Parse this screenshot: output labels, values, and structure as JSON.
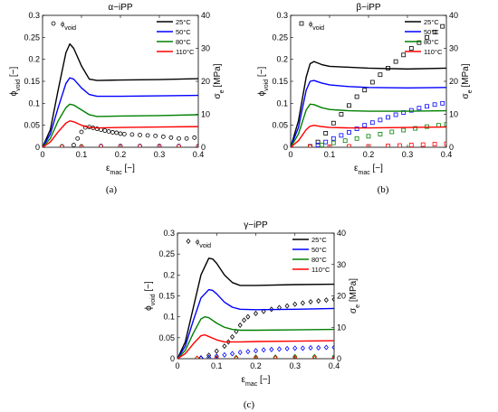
{
  "chart_data": [
    {
      "id": "a",
      "type": "line",
      "title": "α−iPP",
      "caption": "(a)",
      "xlabel": "ε",
      "xlabel_sub": "mac",
      "xlabel_unit": "[−]",
      "ylabel_left": "ϕ",
      "ylabel_left_sub": "void",
      "ylabel_left_unit": "[−]",
      "ylabel_right": "σ",
      "ylabel_right_sub": "e",
      "ylabel_right_unit": "[MPa]",
      "xlim": [
        0,
        0.4
      ],
      "ylim_left": [
        0,
        0.3
      ],
      "ylim_right": [
        0,
        40
      ],
      "x_ticks": [
        "0",
        "0.1",
        "0.2",
        "0.3",
        "0.4"
      ],
      "y_left_ticks": [
        "0",
        "0.05",
        "0.1",
        "0.15",
        "0.2",
        "0.25",
        "0.3"
      ],
      "y_right_ticks": [
        "0",
        "10",
        "20",
        "30",
        "40"
      ],
      "marker_legend": {
        "symbol": "circle",
        "label": "ϕ",
        "label_sub": "void"
      },
      "legend_position": "top-right",
      "series": [
        {
          "name": "25°C",
          "color": "#000000",
          "x": [
            0,
            0.02,
            0.04,
            0.06,
            0.07,
            0.08,
            0.1,
            0.12,
            0.14,
            0.2,
            0.3,
            0.4
          ],
          "y": [
            0,
            0.04,
            0.13,
            0.215,
            0.235,
            0.225,
            0.185,
            0.155,
            0.152,
            0.153,
            0.154,
            0.156
          ]
        },
        {
          "name": "50°C",
          "color": "#0000ff",
          "x": [
            0,
            0.02,
            0.04,
            0.06,
            0.07,
            0.08,
            0.1,
            0.12,
            0.14,
            0.2,
            0.3,
            0.4
          ],
          "y": [
            0,
            0.03,
            0.09,
            0.145,
            0.158,
            0.155,
            0.135,
            0.12,
            0.116,
            0.116,
            0.117,
            0.118
          ]
        },
        {
          "name": "80°C",
          "color": "#008000",
          "x": [
            0,
            0.02,
            0.04,
            0.06,
            0.07,
            0.08,
            0.1,
            0.12,
            0.14,
            0.2,
            0.3,
            0.4
          ],
          "y": [
            0,
            0.02,
            0.06,
            0.09,
            0.098,
            0.096,
            0.085,
            0.074,
            0.07,
            0.071,
            0.072,
            0.074
          ]
        },
        {
          "name": "110°C",
          "color": "#ff0000",
          "x": [
            0,
            0.02,
            0.04,
            0.06,
            0.07,
            0.08,
            0.1,
            0.12,
            0.14,
            0.2,
            0.3,
            0.4
          ],
          "y": [
            0,
            0.012,
            0.035,
            0.055,
            0.06,
            0.058,
            0.05,
            0.045,
            0.044,
            0.045,
            0.046,
            0.047
          ]
        }
      ],
      "markers": [
        {
          "name": "25°C",
          "color": "#000000",
          "x": [
            0,
            0.05,
            0.08,
            0.09,
            0.1,
            0.11,
            0.12,
            0.13,
            0.14,
            0.15,
            0.16,
            0.17,
            0.18,
            0.19,
            0.2,
            0.21,
            0.23,
            0.25,
            0.27,
            0.29,
            0.31,
            0.33,
            0.35,
            0.37,
            0.39
          ],
          "y": [
            0,
            0.002,
            0.005,
            0.02,
            0.035,
            0.045,
            0.046,
            0.044,
            0.042,
            0.04,
            0.038,
            0.036,
            0.034,
            0.033,
            0.031,
            0.03,
            0.029,
            0.028,
            0.027,
            0.026,
            0.024,
            0.022,
            0.02,
            0.02,
            0.022
          ]
        },
        {
          "name": "50°C",
          "color": "#0000ff",
          "x": [
            0,
            0.05,
            0.1,
            0.15,
            0.2,
            0.25,
            0.3,
            0.35,
            0.4
          ],
          "y": [
            0.002,
            0.002,
            0.002,
            0.003,
            0.003,
            0.003,
            0.003,
            0.003,
            0.003
          ]
        },
        {
          "name": "80°C",
          "color": "#008000",
          "x": [
            0,
            0.05,
            0.1,
            0.15,
            0.2,
            0.25,
            0.3,
            0.35,
            0.4
          ],
          "y": [
            0.002,
            0.002,
            0.002,
            0.002,
            0.002,
            0.002,
            0.002,
            0.002,
            0.002
          ]
        },
        {
          "name": "110°C",
          "color": "#ff0000",
          "x": [
            0,
            0.05,
            0.1,
            0.15,
            0.2,
            0.25,
            0.3,
            0.35,
            0.4
          ],
          "y": [
            0.001,
            0.001,
            0.001,
            0.002,
            0.002,
            0.002,
            0.002,
            0.002,
            0.002
          ]
        }
      ]
    },
    {
      "id": "b",
      "type": "line",
      "title": "β−iPP",
      "caption": "(b)",
      "xlabel": "ε",
      "xlabel_sub": "mac",
      "xlabel_unit": "[−]",
      "ylabel_left": "ϕ",
      "ylabel_left_sub": "void",
      "ylabel_left_unit": "[−]",
      "ylabel_right": "σ",
      "ylabel_right_sub": "e",
      "ylabel_right_unit": "[MPa]",
      "xlim": [
        0,
        0.4
      ],
      "ylim_left": [
        0,
        0.3
      ],
      "ylim_right": [
        0,
        40
      ],
      "x_ticks": [
        "0",
        "0.1",
        "0.2",
        "0.3",
        "0.4"
      ],
      "y_left_ticks": [
        "0",
        "0.05",
        "0.1",
        "0.15",
        "0.2",
        "0.25",
        "0.3"
      ],
      "y_right_ticks": [
        "0",
        "10",
        "20",
        "30",
        "40"
      ],
      "marker_legend": {
        "symbol": "square",
        "label": "ϕ",
        "label_sub": "void"
      },
      "legend_position": "top-right",
      "series": [
        {
          "name": "25°C",
          "color": "#000000",
          "x": [
            0,
            0.02,
            0.04,
            0.05,
            0.06,
            0.08,
            0.1,
            0.15,
            0.2,
            0.3,
            0.4
          ],
          "y": [
            0,
            0.06,
            0.16,
            0.19,
            0.195,
            0.188,
            0.184,
            0.182,
            0.18,
            0.178,
            0.18
          ]
        },
        {
          "name": "50°C",
          "color": "#0000ff",
          "x": [
            0,
            0.02,
            0.04,
            0.05,
            0.06,
            0.08,
            0.1,
            0.15,
            0.2,
            0.3,
            0.4
          ],
          "y": [
            0,
            0.045,
            0.13,
            0.15,
            0.152,
            0.146,
            0.142,
            0.138,
            0.136,
            0.135,
            0.136
          ]
        },
        {
          "name": "80°C",
          "color": "#008000",
          "x": [
            0,
            0.02,
            0.04,
            0.05,
            0.06,
            0.08,
            0.1,
            0.15,
            0.2,
            0.3,
            0.4
          ],
          "y": [
            0,
            0.03,
            0.085,
            0.098,
            0.097,
            0.09,
            0.086,
            0.083,
            0.082,
            0.082,
            0.083
          ]
        },
        {
          "name": "110°C",
          "color": "#ff0000",
          "x": [
            0,
            0.02,
            0.04,
            0.05,
            0.06,
            0.08,
            0.1,
            0.15,
            0.2,
            0.3,
            0.4
          ],
          "y": [
            0,
            0.015,
            0.04,
            0.048,
            0.05,
            0.047,
            0.045,
            0.044,
            0.044,
            0.045,
            0.046
          ]
        }
      ],
      "markers": [
        {
          "name": "25°C",
          "color": "#000000",
          "x": [
            0,
            0.05,
            0.07,
            0.09,
            0.11,
            0.13,
            0.15,
            0.17,
            0.19,
            0.21,
            0.23,
            0.25,
            0.27,
            0.29,
            0.31,
            0.33,
            0.35,
            0.37,
            0.39
          ],
          "y": [
            0,
            0.002,
            0.012,
            0.032,
            0.055,
            0.075,
            0.095,
            0.115,
            0.13,
            0.148,
            0.165,
            0.18,
            0.195,
            0.21,
            0.225,
            0.238,
            0.25,
            0.262,
            0.275
          ]
        },
        {
          "name": "50°C",
          "color": "#0000ff",
          "x": [
            0,
            0.05,
            0.07,
            0.09,
            0.11,
            0.13,
            0.15,
            0.17,
            0.19,
            0.21,
            0.23,
            0.25,
            0.27,
            0.29,
            0.31,
            0.33,
            0.35,
            0.37,
            0.39
          ],
          "y": [
            0,
            0.001,
            0.005,
            0.012,
            0.02,
            0.027,
            0.034,
            0.042,
            0.05,
            0.056,
            0.062,
            0.068,
            0.074,
            0.079,
            0.084,
            0.089,
            0.093,
            0.097,
            0.1
          ]
        },
        {
          "name": "80°C",
          "color": "#008000",
          "x": [
            0,
            0.05,
            0.08,
            0.11,
            0.14,
            0.17,
            0.2,
            0.23,
            0.26,
            0.29,
            0.32,
            0.35,
            0.38,
            0.4
          ],
          "y": [
            0,
            0.001,
            0.005,
            0.01,
            0.015,
            0.02,
            0.025,
            0.03,
            0.035,
            0.039,
            0.043,
            0.047,
            0.05,
            0.052
          ]
        },
        {
          "name": "110°C",
          "color": "#ff0000",
          "x": [
            0,
            0.05,
            0.1,
            0.15,
            0.2,
            0.25,
            0.28,
            0.31,
            0.34,
            0.37,
            0.4
          ],
          "y": [
            0,
            0.001,
            0.001,
            0.002,
            0.002,
            0.003,
            0.004,
            0.005,
            0.006,
            0.007,
            0.008
          ]
        }
      ]
    },
    {
      "id": "c",
      "type": "line",
      "title": "γ−iPP",
      "caption": "(c)",
      "xlabel": "ε",
      "xlabel_sub": "mac",
      "xlabel_unit": "[−]",
      "ylabel_left": "ϕ",
      "ylabel_left_sub": "void",
      "ylabel_left_unit": "[−]",
      "ylabel_right": "σ",
      "ylabel_right_sub": "e",
      "ylabel_right_unit": "[MPa]",
      "xlim": [
        0,
        0.4
      ],
      "ylim_left": [
        0,
        0.3
      ],
      "ylim_right": [
        0,
        40
      ],
      "x_ticks": [
        "0",
        "0.1",
        "0.2",
        "0.3",
        "0.4"
      ],
      "y_left_ticks": [
        "0",
        "0.05",
        "0.1",
        "0.15",
        "0.2",
        "0.25",
        "0.3"
      ],
      "y_right_ticks": [
        "0",
        "10",
        "20",
        "30",
        "40"
      ],
      "marker_legend": {
        "symbol": "diamond",
        "label": "ϕ",
        "label_sub": "void"
      },
      "legend_position": "top-right",
      "series": [
        {
          "name": "25°C",
          "color": "#000000",
          "x": [
            0,
            0.02,
            0.04,
            0.06,
            0.08,
            0.09,
            0.1,
            0.12,
            0.14,
            0.16,
            0.2,
            0.3,
            0.4
          ],
          "y": [
            0,
            0.04,
            0.12,
            0.2,
            0.24,
            0.238,
            0.228,
            0.2,
            0.182,
            0.175,
            0.175,
            0.177,
            0.178
          ]
        },
        {
          "name": "50°C",
          "color": "#0000ff",
          "x": [
            0,
            0.02,
            0.04,
            0.06,
            0.08,
            0.09,
            0.1,
            0.12,
            0.14,
            0.16,
            0.2,
            0.3,
            0.4
          ],
          "y": [
            0,
            0.03,
            0.09,
            0.145,
            0.165,
            0.163,
            0.155,
            0.135,
            0.123,
            0.118,
            0.117,
            0.118,
            0.12
          ]
        },
        {
          "name": "80°C",
          "color": "#008000",
          "x": [
            0,
            0.02,
            0.04,
            0.06,
            0.07,
            0.08,
            0.1,
            0.12,
            0.14,
            0.16,
            0.2,
            0.3,
            0.4
          ],
          "y": [
            0,
            0.02,
            0.06,
            0.095,
            0.1,
            0.098,
            0.085,
            0.075,
            0.07,
            0.068,
            0.068,
            0.069,
            0.07
          ]
        },
        {
          "name": "110°C",
          "color": "#ff0000",
          "x": [
            0,
            0.02,
            0.04,
            0.06,
            0.07,
            0.08,
            0.1,
            0.12,
            0.14,
            0.16,
            0.2,
            0.3,
            0.4
          ],
          "y": [
            0,
            0.012,
            0.035,
            0.055,
            0.057,
            0.053,
            0.045,
            0.04,
            0.04,
            0.04,
            0.041,
            0.042,
            0.043
          ]
        }
      ],
      "markers": [
        {
          "name": "25°C",
          "color": "#000000",
          "x": [
            0,
            0.06,
            0.08,
            0.1,
            0.12,
            0.13,
            0.14,
            0.15,
            0.16,
            0.17,
            0.18,
            0.2,
            0.22,
            0.24,
            0.26,
            0.28,
            0.3,
            0.32,
            0.34,
            0.36,
            0.38,
            0.4
          ],
          "y": [
            0,
            0.002,
            0.008,
            0.018,
            0.03,
            0.04,
            0.052,
            0.065,
            0.08,
            0.092,
            0.1,
            0.108,
            0.113,
            0.118,
            0.122,
            0.126,
            0.13,
            0.133,
            0.136,
            0.138,
            0.14,
            0.142
          ]
        },
        {
          "name": "50°C",
          "color": "#0000ff",
          "x": [
            0,
            0.06,
            0.08,
            0.1,
            0.12,
            0.14,
            0.16,
            0.18,
            0.2,
            0.22,
            0.24,
            0.26,
            0.28,
            0.3,
            0.32,
            0.34,
            0.36,
            0.38,
            0.4
          ],
          "y": [
            0,
            0.001,
            0.003,
            0.006,
            0.009,
            0.012,
            0.015,
            0.017,
            0.019,
            0.021,
            0.022,
            0.023,
            0.024,
            0.025,
            0.025,
            0.026,
            0.026,
            0.027,
            0.027
          ]
        },
        {
          "name": "80°C",
          "color": "#008000",
          "x": [
            0,
            0.05,
            0.1,
            0.15,
            0.2,
            0.25,
            0.3,
            0.35,
            0.4
          ],
          "y": [
            0,
            0.001,
            0.002,
            0.003,
            0.004,
            0.004,
            0.005,
            0.005,
            0.005
          ]
        },
        {
          "name": "110°C",
          "color": "#ff0000",
          "x": [
            0,
            0.05,
            0.1,
            0.15,
            0.2,
            0.25,
            0.3,
            0.35,
            0.4
          ],
          "y": [
            0,
            0.001,
            0.001,
            0.001,
            0.002,
            0.002,
            0.002,
            0.002,
            0.002
          ]
        }
      ]
    }
  ]
}
